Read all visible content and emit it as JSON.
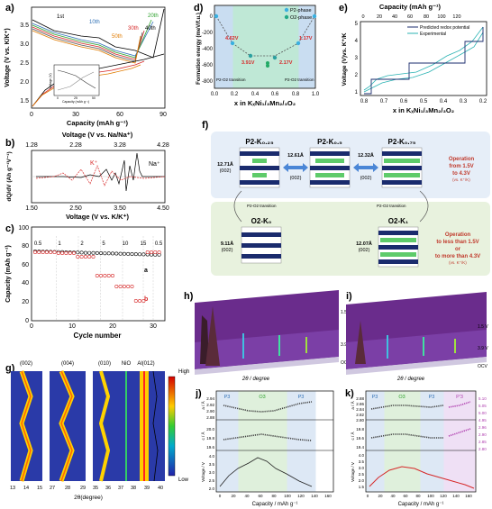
{
  "figure": {
    "panels": {
      "a": {
        "label": "a)",
        "xlabel": "Capacity (mAh g⁻¹)",
        "ylabel": "Voltage (V vs. K/K⁺)",
        "xticks": [
          "0",
          "30",
          "60",
          "90"
        ],
        "yticks": [
          "1.5",
          "2.0",
          "2.5",
          "3.0",
          "3.5"
        ],
        "cycle_labels": [
          "1st",
          "10th",
          "20th",
          "30th",
          "40th",
          "50th"
        ],
        "inset": {
          "ylabel": "Voltage (V)",
          "xlabel": "Capacity (mAh g⁻¹)",
          "xticks": [
            "0",
            "25",
            "50"
          ]
        }
      },
      "b": {
        "label": "b)",
        "top_xlabel": "Voltage (V vs. Na/Na⁺)",
        "top_xticks": [
          "1.28",
          "2.28",
          "3.28",
          "4.28"
        ],
        "xlabel": "Voltage (V vs. K/K⁺)",
        "xticks": [
          "1.50",
          "2.50",
          "3.50",
          "4.50"
        ],
        "ylabel": "dQ/dV (Ah g⁻¹V⁻¹)",
        "legend": [
          "Na⁺",
          "K⁺"
        ]
      },
      "c": {
        "label": "c)",
        "xlabel": "Cycle number",
        "ylabel": "Capacity (mAh g⁻¹)",
        "xticks": [
          "0",
          "10",
          "20",
          "30"
        ],
        "yticks": [
          "0",
          "20",
          "40",
          "60",
          "80",
          "100"
        ],
        "rates": [
          "0.5",
          "1",
          "2",
          "5",
          "10",
          "15",
          "0.5"
        ],
        "series_labels": [
          "a",
          "b"
        ]
      },
      "d": {
        "label": "d)",
        "ylabel": "Formation energy (meV/f.u.)",
        "xlabel": "x in KₓNi₁/₃Mn₂/₃O₂",
        "xticks": [
          "0.0",
          "0.2",
          "0.4",
          "0.6",
          "0.8",
          "1.0"
        ],
        "yticks": [
          "0",
          "-200",
          "-400",
          "-600",
          "-800"
        ],
        "legend": [
          "P2-phase",
          "O2-phase"
        ],
        "voltages": [
          "4.62V",
          "3.91V",
          "2.17V",
          "1.17V"
        ],
        "transitions": [
          "P2-O2 transition",
          "P2-O2 transition"
        ]
      },
      "e": {
        "label": "e)",
        "top_xlabel": "Capacity (mAh g⁻¹)",
        "top_xticks": [
          "0",
          "20",
          "40",
          "60",
          "80",
          "100",
          "120"
        ],
        "xlabel": "x in KₓNi₁/₃Mn₂/₃O₂",
        "xticks": [
          "0.8",
          "0.7",
          "0.6",
          "0.5",
          "0.4",
          "0.3",
          "0.2"
        ],
        "ylabel": "Voltage (V)vs. K⁺/K",
        "yticks": [
          "1",
          "2",
          "3",
          "4",
          "5"
        ],
        "legend": [
          "Predicted redox potential",
          "Experimental"
        ]
      },
      "f": {
        "label": "f)",
        "structures": [
          {
            "title": "P2-K₀.₂₅",
            "d": "12.71Å",
            "hkl": "(002)"
          },
          {
            "title": "P2-K₀.₅",
            "d": "12.61Å",
            "hkl": "(002)"
          },
          {
            "title": "P2-K₀.₇₅",
            "d": "12.32Å",
            "hkl": "(002)"
          },
          {
            "title": "O2-K₀",
            "d": "9.11Å",
            "hkl": "(002)"
          },
          {
            "title": "O2-K₁",
            "d": "12.07Å",
            "hkl": "(002)"
          }
        ],
        "transition_label": "P2-O2 transition",
        "op1": [
          "Operation",
          "from 1.5V",
          "to 4.3V",
          "(vs. K⁺/K)"
        ],
        "op2": [
          "Operation",
          "to less than 1.5V",
          "or",
          "to more than 4.3V",
          "(vs. K⁺/K)"
        ]
      },
      "g": {
        "label": "g)",
        "hkl": [
          "(002)",
          "(004)",
          "(010)",
          "NiO",
          "Al(012)"
        ],
        "xticks": [
          [
            "13",
            "14",
            "15"
          ],
          [
            "27",
            "28",
            "29"
          ],
          [
            "35",
            "36",
            "37",
            "38",
            "39",
            "40"
          ]
        ],
        "xlabel": "2θ(degree)",
        "colorbar": [
          "High",
          "Low"
        ]
      },
      "h": {
        "label": "h)",
        "xlabel": "2θ / degree",
        "levels": [
          "1.5 V",
          "3.9 V",
          "OCV"
        ]
      },
      "i": {
        "label": "i)",
        "xlabel": "2θ / degree",
        "levels": [
          "1.5 V",
          "3.9 V",
          "OCV"
        ]
      },
      "j": {
        "label": "j)",
        "phases": [
          "P3",
          "O3",
          "P3"
        ],
        "xlabel": "Capacity / mAh g⁻¹",
        "xticks": [
          "0",
          "20",
          "40",
          "60",
          "80",
          "100",
          "120",
          "140",
          "160"
        ],
        "ylabels": [
          "a / Å",
          "c / Å",
          "Voltage / V"
        ],
        "a_ticks": [
          "2.94",
          "2.92",
          "2.90",
          "2.88"
        ],
        "c_ticks": [
          "20.0",
          "19.8",
          "19.6"
        ],
        "v_ticks": [
          "4.0",
          "3.5",
          "3.0",
          "2.5",
          "2.0"
        ]
      },
      "k": {
        "label": "k)",
        "phases": [
          "P3",
          "O3",
          "P3",
          "P'3"
        ],
        "xlabel": "Capacity / mAh g⁻¹",
        "xticks": [
          "0",
          "20",
          "40",
          "60",
          "80",
          "100",
          "120",
          "140",
          "160"
        ],
        "ylabels": [
          "a / Å",
          "c / Å",
          "Voltage / V"
        ],
        "a_ticks": [
          "2.88",
          "2.86",
          "2.84",
          "2.82",
          "2.80"
        ],
        "c_ticks": [
          "19.8",
          "19.6",
          "19.4"
        ],
        "v_ticks": [
          "4.0",
          "3.5",
          "3.0",
          "2.5",
          "2.0",
          "1.5"
        ],
        "right_ticks": [
          "5.10",
          "5.05",
          "5.00",
          "4.95",
          "2.96",
          "2.90",
          "2.85",
          "2.80"
        ]
      }
    },
    "colors": {
      "blue": "#2e6fb5",
      "red": "#d62828",
      "green": "#2ca02c",
      "orange": "#e07b00",
      "teal": "#2bb3b3",
      "navy": "#1a2b6d"
    }
  }
}
